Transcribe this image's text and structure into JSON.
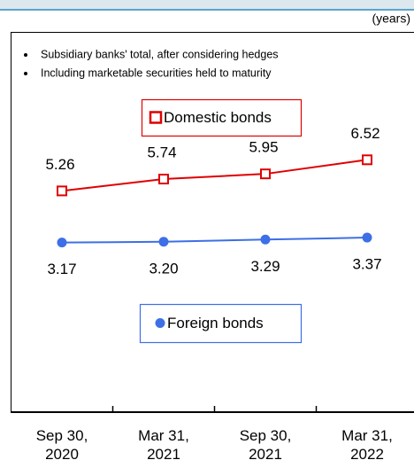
{
  "chart_data": {
    "type": "line",
    "unit_label": "(years)",
    "notes": [
      "Subsidiary banks' total, after considering hedges",
      "Including marketable securities held to maturity"
    ],
    "categories": [
      [
        "Sep 30,",
        "2020"
      ],
      [
        "Mar 31,",
        "2021"
      ],
      [
        "Sep 30,",
        "2021"
      ],
      [
        "Mar 31,",
        "2022"
      ]
    ],
    "series": [
      {
        "name": "Domestic bonds",
        "color": "#e00000",
        "marker": "square",
        "values": [
          5.26,
          5.74,
          5.95,
          6.52
        ],
        "value_labels": [
          "5.26",
          "5.74",
          "5.95",
          "6.52"
        ]
      },
      {
        "name": "Foreign bonds",
        "color": "#3d6fe6",
        "marker": "circle",
        "values": [
          3.17,
          3.2,
          3.29,
          3.37
        ],
        "value_labels": [
          "3.17",
          "3.20",
          "3.29",
          "3.37"
        ]
      }
    ],
    "ylim": [
      -3.7,
      11.7
    ]
  }
}
